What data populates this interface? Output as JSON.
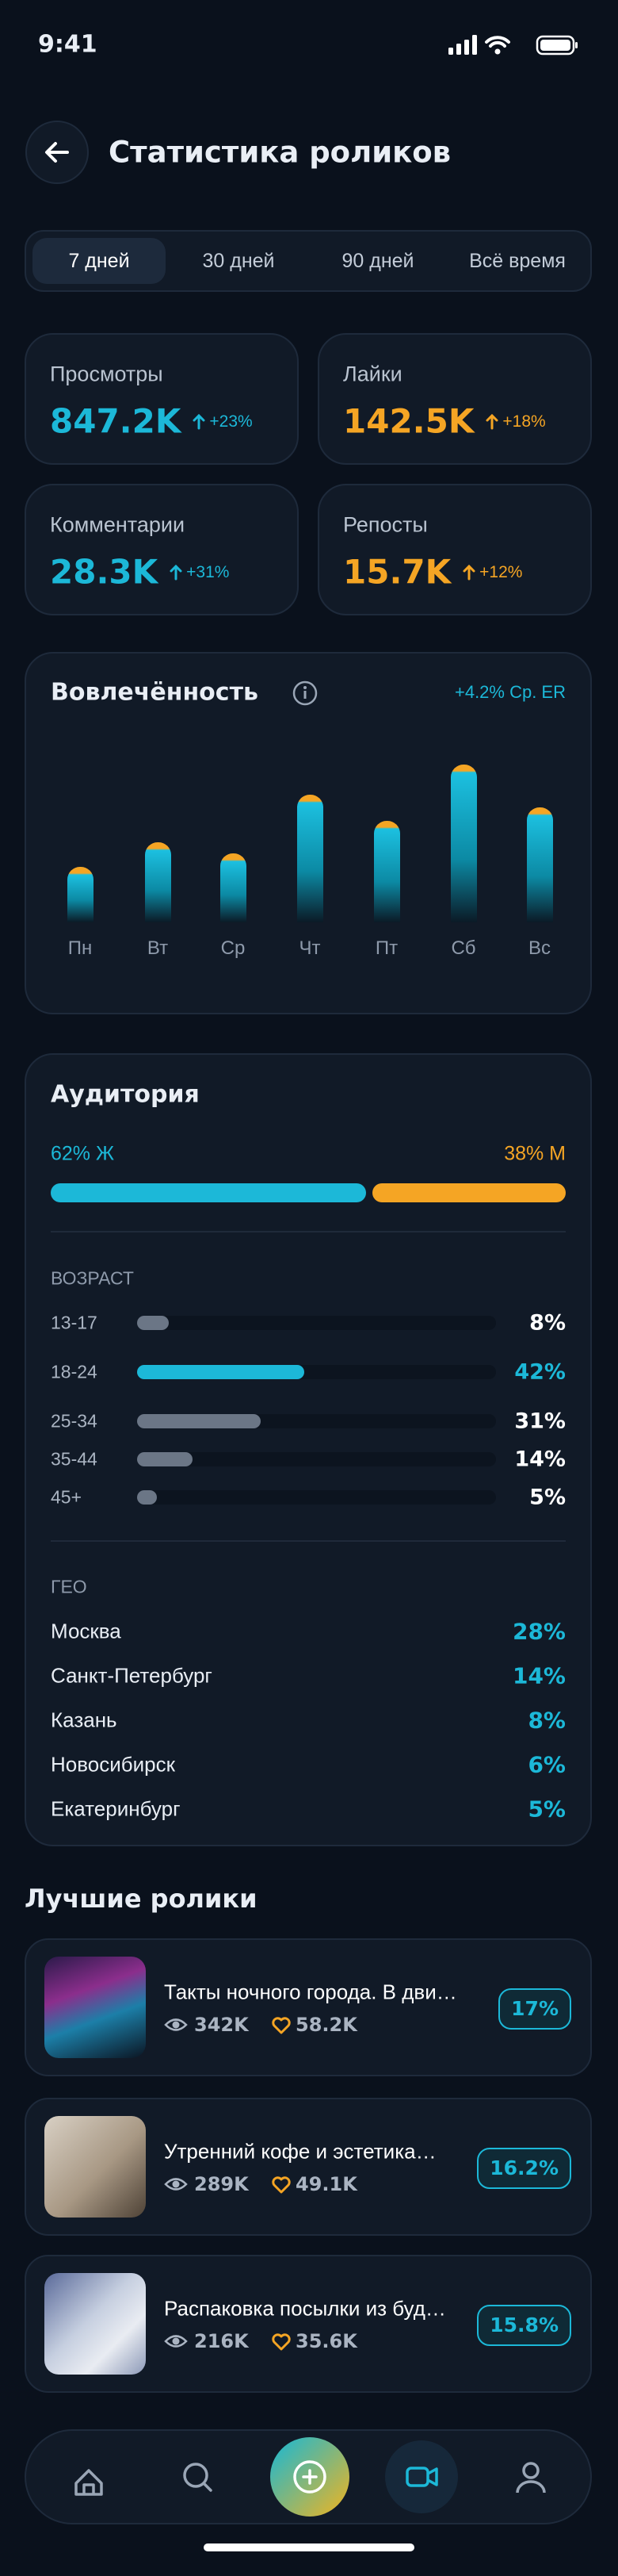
{
  "status_bar": {
    "time": "9:41"
  },
  "header": {
    "title": "Статистика роликов"
  },
  "tabs": {
    "items": [
      "7 дней",
      "30 дней",
      "90 дней",
      "Всё время"
    ],
    "active": 0
  },
  "stats": [
    {
      "label": "Просмотры",
      "value": "847.2K",
      "change": "+23%",
      "color": "#1cb8d8"
    },
    {
      "label": "Лайки",
      "value": "142.5K",
      "change": "+18%",
      "color": "#f5a524"
    },
    {
      "label": "Комментарии",
      "value": "28.3K",
      "change": "+31%",
      "color": "#1cb8d8"
    },
    {
      "label": "Репосты",
      "value": "15.7K",
      "change": "+12%",
      "color": "#f5a524"
    }
  ],
  "engagement": {
    "title": "Вовлечённость",
    "note": "+4.2% Ср. ER",
    "days": [
      "Пн",
      "Вт",
      "Ср",
      "Чт",
      "Пт",
      "Сб",
      "Вс"
    ],
    "values": [
      34,
      49,
      42,
      78,
      62,
      96,
      70
    ],
    "ylim": [
      0,
      100
    ]
  },
  "audience": {
    "title": "Аудитория",
    "female_label": "62% Ж",
    "male_label": "38% М",
    "female": 62,
    "male": 38,
    "age_title": "ВОЗРАСТ",
    "age_xlim": [
      0,
      90
    ],
    "ages": [
      {
        "label": "13-17",
        "value": 8,
        "value_label": "8%"
      },
      {
        "label": "18-24",
        "value": 42,
        "value_label": "42%",
        "highlight": true
      },
      {
        "label": "25-34",
        "value": 31,
        "value_label": "31%"
      },
      {
        "label": "35-44",
        "value": 14,
        "value_label": "14%"
      },
      {
        "label": "45+",
        "value": 5,
        "value_label": "5%"
      }
    ],
    "geo_title": "ГЕО",
    "geo": [
      {
        "city": "Москва",
        "share": "28%"
      },
      {
        "city": "Санкт-Петербург",
        "share": "14%"
      },
      {
        "city": "Казань",
        "share": "8%"
      },
      {
        "city": "Новосибирск",
        "share": "6%"
      },
      {
        "city": "Екатеринбург",
        "share": "5%"
      }
    ]
  },
  "top_videos": {
    "title": "Лучшие ролики",
    "items": [
      {
        "title": "Такты ночного города. В дви…",
        "views": "342K",
        "likes": "58.2K",
        "er": "17%"
      },
      {
        "title": "Утренний кофе и эстетика…",
        "views": "289K",
        "likes": "49.1K",
        "er": "16.2%"
      },
      {
        "title": "Распаковка посылки из буд…",
        "views": "216K",
        "likes": "35.6K",
        "er": "15.8%"
      }
    ]
  }
}
